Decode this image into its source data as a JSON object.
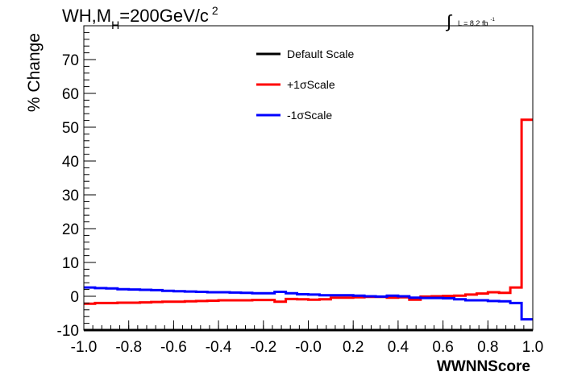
{
  "chart_data": {
    "type": "line",
    "title_parts": [
      "WH,M",
      "H",
      "=200GeV/c",
      "2"
    ],
    "lumi_parts": [
      "L = 8.2 fb",
      "-1"
    ],
    "xlabel": "WWNNScore",
    "ylabel": "% Change",
    "xlim": [
      -1.0,
      1.0
    ],
    "ylim": [
      -10,
      80
    ],
    "xticks": [
      -1.0,
      -0.8,
      -0.6,
      -0.4,
      -0.2,
      0.0,
      0.2,
      0.4,
      0.6,
      0.8,
      1.0
    ],
    "xtick_labels": [
      "-1.0",
      "-0.8",
      "-0.6",
      "-0.4",
      "-0.2",
      "-0.0",
      "0.2",
      "0.4",
      "0.6",
      "0.8",
      "1.0"
    ],
    "yticks": [
      -10,
      0,
      10,
      20,
      30,
      40,
      50,
      60,
      70
    ],
    "ytick_labels": [
      "-10",
      "0",
      "10",
      "20",
      "30",
      "40",
      "50",
      "60",
      "70"
    ],
    "grid": false,
    "legend_position": "top-center",
    "bin_edges": [
      -1.0,
      -0.95,
      -0.9,
      -0.85,
      -0.8,
      -0.75,
      -0.7,
      -0.65,
      -0.6,
      -0.55,
      -0.5,
      -0.45,
      -0.4,
      -0.35,
      -0.3,
      -0.25,
      -0.2,
      -0.15,
      -0.1,
      -0.05,
      0.0,
      0.05,
      0.1,
      0.15,
      0.2,
      0.25,
      0.3,
      0.35,
      0.4,
      0.45,
      0.5,
      0.55,
      0.6,
      0.65,
      0.7,
      0.75,
      0.8,
      0.85,
      0.9,
      0.95,
      1.0
    ],
    "series": [
      {
        "name": "Default Scale",
        "color": "#000000",
        "values": [
          -10,
          -10,
          -10,
          -10,
          -10,
          -10,
          -10,
          -10,
          -10,
          -10,
          -10,
          -10,
          -10,
          -10,
          -10,
          -10,
          -10,
          -10,
          -10,
          -10,
          -10,
          -10,
          -10,
          -10,
          -10,
          -10,
          -10,
          -10,
          -10,
          -10,
          -10,
          -10,
          -10,
          -10,
          -10,
          -10,
          -10,
          -10,
          -10,
          -10
        ]
      },
      {
        "name": "+1σScale",
        "color": "#ff0000",
        "values": [
          -2.2,
          -2.0,
          -2.0,
          -1.9,
          -1.9,
          -1.8,
          -1.7,
          -1.6,
          -1.6,
          -1.5,
          -1.4,
          -1.3,
          -1.2,
          -1.2,
          -1.2,
          -1.1,
          -1.1,
          -1.6,
          -0.8,
          -0.9,
          -1.0,
          -0.9,
          -0.4,
          -0.4,
          -0.3,
          -0.2,
          -0.2,
          -0.4,
          -0.3,
          -1.0,
          -0.1,
          0.0,
          0.1,
          0.2,
          0.5,
          0.8,
          1.2,
          1.0,
          2.6,
          52.2
        ]
      },
      {
        "name": "-1σScale",
        "color": "#0000ff",
        "values": [
          2.6,
          2.4,
          2.3,
          2.1,
          2.0,
          1.9,
          1.8,
          1.6,
          1.5,
          1.4,
          1.3,
          1.2,
          1.2,
          1.1,
          1.0,
          0.9,
          0.9,
          1.3,
          0.9,
          0.6,
          0.5,
          0.3,
          0.3,
          0.3,
          0.2,
          0.0,
          -0.1,
          0.2,
          0.0,
          -0.4,
          -0.5,
          -0.5,
          -0.6,
          -0.9,
          -1.2,
          -1.2,
          -1.4,
          -1.5,
          -2.0,
          -6.8
        ]
      }
    ]
  }
}
